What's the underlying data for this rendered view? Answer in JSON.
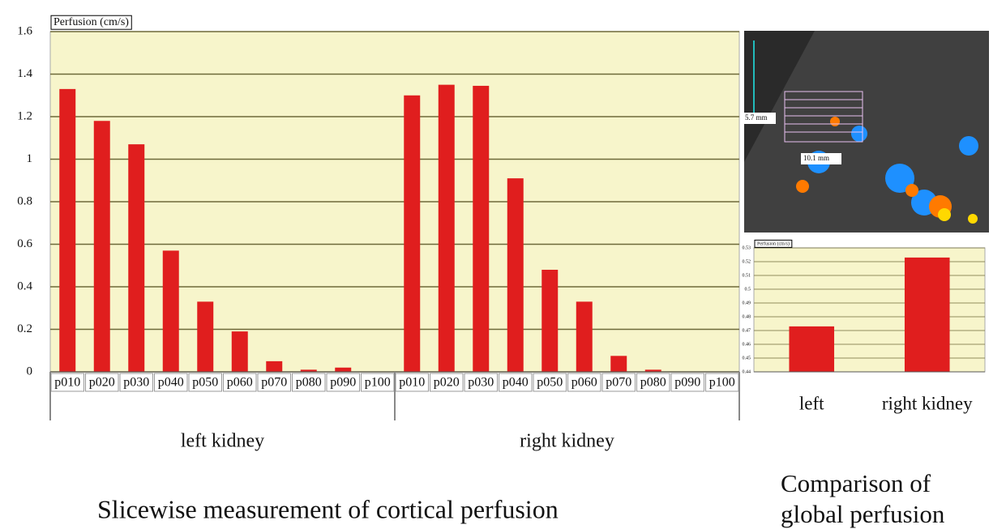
{
  "chart_data": [
    {
      "type": "bar",
      "y_label": "Perfusion (cm/s)",
      "categories": [
        "p010",
        "p020",
        "p030",
        "p040",
        "p050",
        "p060",
        "p070",
        "p080",
        "p090",
        "p100",
        "p010",
        "p020",
        "p030",
        "p040",
        "p050",
        "p060",
        "p070",
        "p080",
        "p090",
        "p100"
      ],
      "groups": [
        "left kidney",
        "right kidney"
      ],
      "values": [
        1.33,
        1.18,
        1.07,
        0.57,
        0.33,
        0.19,
        0.05,
        0.01,
        0.02,
        0,
        1.3,
        1.35,
        1.345,
        0.91,
        0.48,
        0.33,
        0.075,
        0.01,
        0,
        0
      ],
      "color": "#e01e1e",
      "ylim": [
        0,
        1.6
      ],
      "yticks": [
        0,
        0.2,
        0.4,
        0.6,
        0.8,
        1,
        1.2,
        1.4,
        1.6
      ],
      "grid": true,
      "caption": "Slicewise measurement of cortical perfusion"
    },
    {
      "type": "bar",
      "y_label": "Perfusion (cm/s)",
      "categories": [
        "left",
        "right kidney"
      ],
      "values": [
        0.473,
        0.523
      ],
      "color": "#e01e1e",
      "ylim": [
        0.44,
        0.53
      ],
      "yticks": [
        0.44,
        0.45,
        0.46,
        0.47,
        0.48,
        0.49,
        0.5,
        0.51,
        0.52,
        0.53
      ],
      "grid": true,
      "caption": "Comparison of global perfusion"
    }
  ],
  "image": {
    "labels": [
      "5.7 mm",
      "10.1 mm"
    ]
  }
}
